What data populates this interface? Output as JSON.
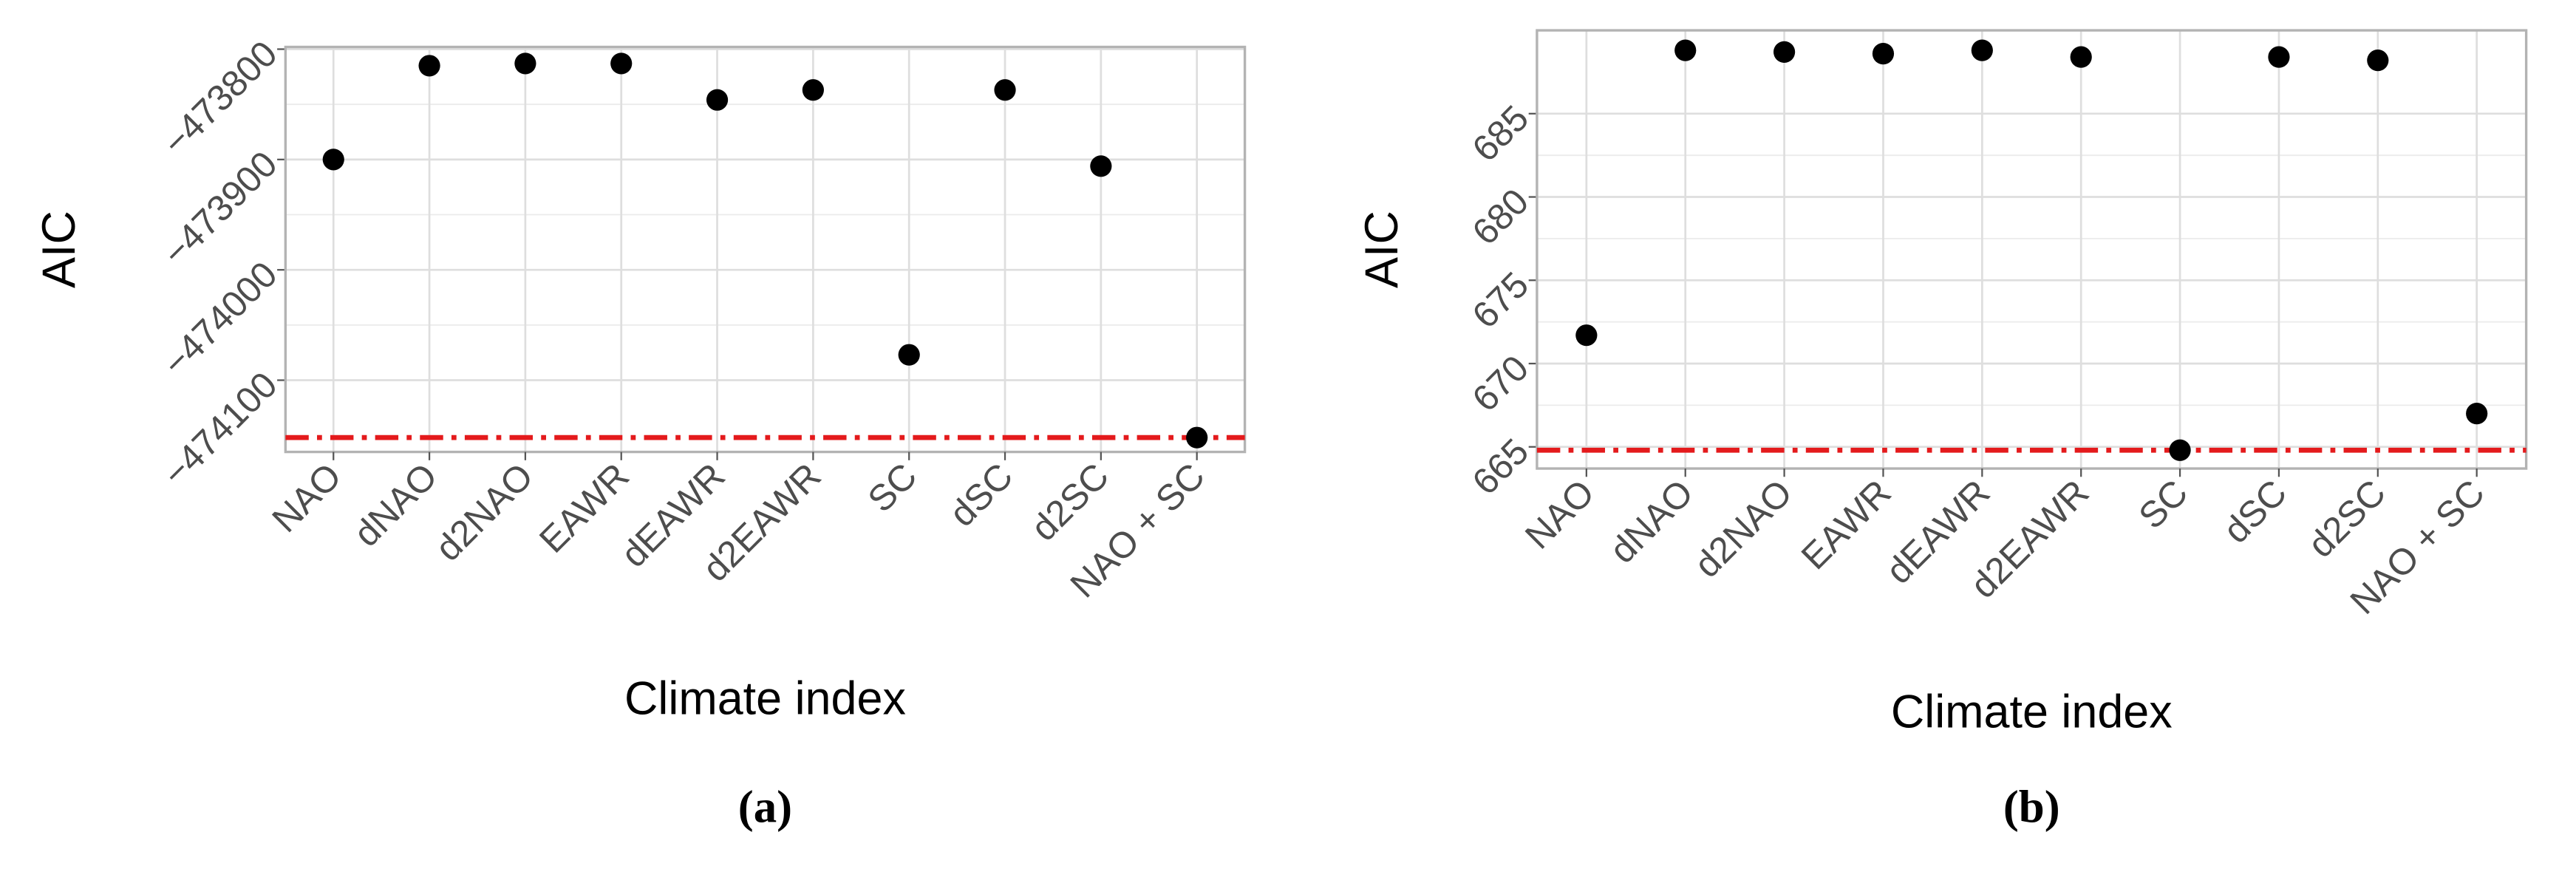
{
  "chart_data": [
    {
      "type": "scatter",
      "caption": "(a)",
      "y_label": "AIC",
      "x_label": "Climate index",
      "categories": [
        "NAO",
        "dNAO",
        "d2NAO",
        "EAWR",
        "dEAWR",
        "d2EAWR",
        "SC",
        "dSC",
        "d2SC",
        "NAO + SC"
      ],
      "values": [
        -473900,
        -473815,
        -473813,
        -473813,
        -473846,
        -473837,
        -474077,
        -473837,
        -473906,
        -474152
      ],
      "color": "#000000",
      "hline": -474152,
      "hline_color": "#e41a1c",
      "ylim": [
        -474165,
        -473798
      ],
      "yticks": [
        {
          "value": -473800,
          "label": "−473800"
        },
        {
          "value": -473900,
          "label": "−473900"
        },
        {
          "value": -474000,
          "label": "−474000"
        },
        {
          "value": -474100,
          "label": "−474100"
        }
      ],
      "grid": true
    },
    {
      "type": "scatter",
      "caption": "(b)",
      "y_label": "AIC",
      "x_label": "Climate index",
      "categories": [
        "NAO",
        "dNAO",
        "d2NAO",
        "EAWR",
        "dEAWR",
        "d2EAWR",
        "SC",
        "dSC",
        "d2SC",
        "NAO + SC"
      ],
      "values": [
        671.7,
        688.8,
        688.7,
        688.6,
        688.8,
        688.4,
        664.8,
        688.4,
        688.2,
        667.0
      ],
      "color": "#000000",
      "hline": 664.8,
      "hline_color": "#e41a1c",
      "ylim": [
        663.7,
        690
      ],
      "yticks": [
        665,
        670,
        675,
        680,
        685
      ],
      "grid": true
    }
  ]
}
